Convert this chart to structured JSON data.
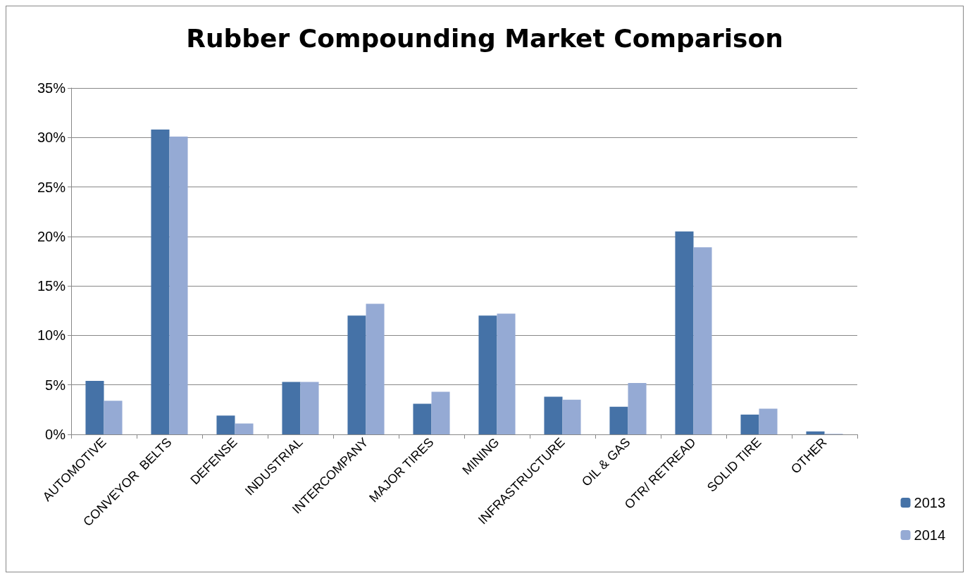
{
  "chart_data": {
    "type": "bar",
    "title": "Rubber Compounding Market Comparison",
    "categories": [
      "AUTOMOTIVE",
      "CONVEYOR  BELTS",
      "DEFENSE",
      "INDUSTRIAL",
      "INTERCOMPANY",
      "MAJOR TIRES",
      "MINING",
      "INFRASTRUCTURE",
      "OIL & GAS",
      "OTR/ RETREAD",
      "SOLID TIRE",
      "OTHER"
    ],
    "series": [
      {
        "name": "2013",
        "color": "#4572a7",
        "values": [
          5.4,
          30.8,
          1.9,
          5.3,
          12.0,
          3.1,
          12.0,
          3.8,
          2.8,
          20.5,
          2.0,
          0.3
        ]
      },
      {
        "name": "2014",
        "color": "#95aad4",
        "values": [
          3.4,
          30.1,
          1.1,
          5.3,
          13.2,
          4.3,
          12.2,
          3.5,
          5.2,
          18.9,
          2.6,
          0.05
        ]
      }
    ],
    "ylim": [
      0,
      35
    ],
    "yticks": [
      {
        "value": 0,
        "label": "0%"
      },
      {
        "value": 5,
        "label": "5%"
      },
      {
        "value": 10,
        "label": "10%"
      },
      {
        "value": 15,
        "label": "15%"
      },
      {
        "value": 20,
        "label": "20%"
      },
      {
        "value": 25,
        "label": "25%"
      },
      {
        "value": 30,
        "label": "30%"
      },
      {
        "value": 35,
        "label": "35%"
      }
    ],
    "grid": "y",
    "legend": "right"
  }
}
